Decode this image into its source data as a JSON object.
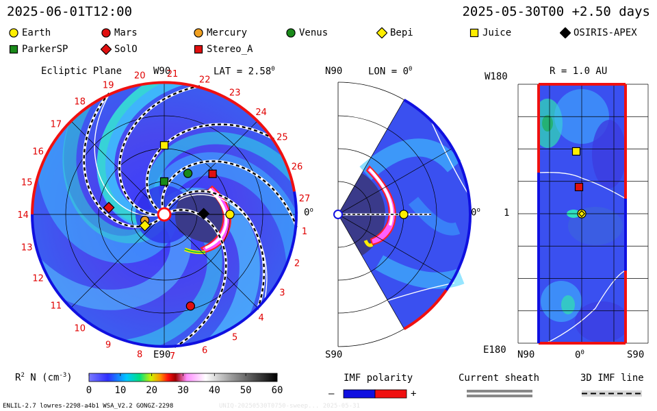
{
  "header": {
    "time": "2025-06-01T12:00",
    "run": "2025-05-30T00 +2.50 days"
  },
  "legend": [
    {
      "name": "Earth",
      "shape": "circle",
      "color": "#ffee00"
    },
    {
      "name": "Mars",
      "shape": "circle",
      "color": "#e01010"
    },
    {
      "name": "Mercury",
      "shape": "circle",
      "color": "#f0a020"
    },
    {
      "name": "Venus",
      "shape": "circle",
      "color": "#1a8a1a"
    },
    {
      "name": "Bepi",
      "shape": "diamond",
      "color": "#ffee00"
    },
    {
      "name": "Juice",
      "shape": "square",
      "color": "#ffee00"
    },
    {
      "name": "OSIRIS-APEX",
      "shape": "diamond",
      "color": "#000000"
    },
    {
      "name": "ParkerSP",
      "shape": "square",
      "color": "#1a8a1a"
    },
    {
      "name": "SolO",
      "shape": "diamond",
      "color": "#e01010"
    },
    {
      "name": "Stereo_A",
      "shape": "square",
      "color": "#e01010"
    }
  ],
  "panels": {
    "ecliptic": {
      "title": "Ecliptic Plane",
      "top": "W90",
      "bottom": "E90",
      "right": "0",
      "lat": "LAT = 2.58",
      "lat_sup": "0"
    },
    "meridional": {
      "top": "N90",
      "bottom": "S90",
      "right": "0",
      "lon": "LON = 0",
      "lon_sup": "0"
    },
    "sphere": {
      "title": "R = 1.0 AU",
      "top_left": "W180",
      "bottom_left": "E180",
      "left_mid": "1",
      "bottom_ticks": [
        "N90",
        "0",
        "S90"
      ],
      "bottom_mid_sup": "0"
    }
  },
  "colorbar": {
    "label": "R",
    "label_sup": "2",
    "label_rest": " N (cm",
    "label_exp": "-3",
    "label_end": ")",
    "ticks": [
      "0",
      "10",
      "20",
      "30",
      "40",
      "50",
      "60"
    ],
    "min": 0,
    "max": 60
  },
  "imf": {
    "title": "IMF polarity",
    "minus": "–",
    "plus": "+",
    "colors": [
      "#1010e0",
      "#f01010"
    ]
  },
  "sheath": {
    "title": "Current sheath"
  },
  "imfline": {
    "title": "3D IMF line"
  },
  "footer": "ENLIL-2.7 lowres-2298-a4b1 WSA_V2.2 GONGZ-2298",
  "footer_faint": "UNIQ-20250530T0750-sweep... 2025-05-31",
  "chart_data": {
    "type": "heatmap",
    "title": "Ecliptic Plane",
    "carrington_ticks": [
      "20",
      "21",
      "22",
      "23",
      "24",
      "25",
      "26",
      "27",
      "1",
      "2",
      "3",
      "4",
      "5",
      "6",
      "7",
      "8",
      "9",
      "10",
      "11",
      "12",
      "13",
      "14",
      "15",
      "16",
      "17",
      "18",
      "19"
    ],
    "objects": [
      {
        "name": "Earth",
        "panel": "ecliptic",
        "r_au": 1.0,
        "lon_deg": 0
      },
      {
        "name": "Mars",
        "panel": "ecliptic",
        "r_au": 1.45,
        "lon_deg": -74
      },
      {
        "name": "Mercury",
        "panel": "ecliptic",
        "r_au": 0.31,
        "lon_deg": 197
      },
      {
        "name": "Venus",
        "panel": "ecliptic",
        "r_au": 0.72,
        "lon_deg": 60
      },
      {
        "name": "Bepi",
        "panel": "ecliptic",
        "r_au": 0.34,
        "lon_deg": 210
      },
      {
        "name": "Juice",
        "panel": "ecliptic",
        "r_au": 1.05,
        "lon_deg": 90
      },
      {
        "name": "OSIRIS-APEX",
        "panel": "ecliptic",
        "r_au": 0.6,
        "lon_deg": 1
      },
      {
        "name": "ParkerSP",
        "panel": "ecliptic",
        "r_au": 0.5,
        "lon_deg": 90
      },
      {
        "name": "SolO",
        "panel": "ecliptic",
        "r_au": 0.85,
        "lon_deg": 173
      },
      {
        "name": "Stereo_A",
        "panel": "ecliptic",
        "r_au": 0.96,
        "lon_deg": 40
      }
    ],
    "colorbar_range": [
      0,
      60
    ],
    "colorbar_unit": "R2 N (cm-3)"
  }
}
